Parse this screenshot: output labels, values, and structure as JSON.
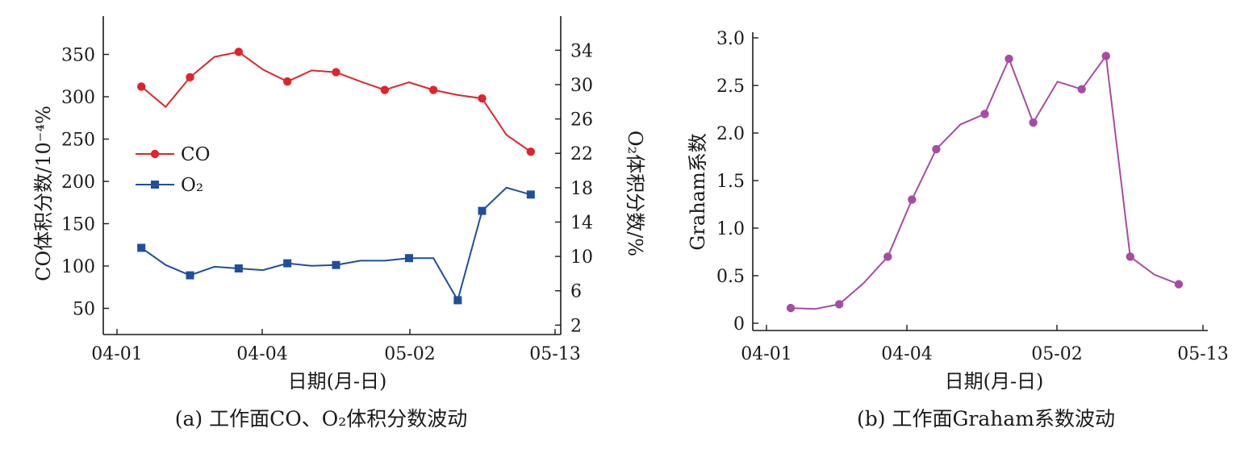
{
  "chart_data": [
    {
      "type": "line",
      "caption": "(a)  工作面CO、O₂体积分数波动",
      "xlabel": "日期(月-日)",
      "x_ticks": [
        "04-01",
        "04-04",
        "05-02",
        "05-13"
      ],
      "ylabel_left": "CO体积分数/10⁻⁴%",
      "ylabel_right": "O₂体积分数/%",
      "ylim_left": [
        20,
        360
      ],
      "ylim_right": [
        1,
        34.5
      ],
      "yticks_left": [
        50,
        100,
        150,
        200,
        250,
        300,
        350
      ],
      "yticks_right": [
        2,
        6,
        10,
        14,
        18,
        22,
        26,
        30,
        34
      ],
      "xlim": [
        0,
        18
      ],
      "legend_position": "left-middle",
      "series": [
        {
          "name": "CO",
          "axis": "left",
          "color": "#e0242b",
          "marker": "circle",
          "x": [
            1,
            2,
            3,
            4,
            5,
            6,
            7,
            8,
            9,
            10,
            11,
            12,
            13,
            14,
            15,
            16,
            17
          ],
          "y": [
            312,
            288,
            323,
            347,
            353,
            332,
            318,
            331,
            329,
            318,
            308,
            317,
            308,
            302,
            298,
            255,
            235
          ],
          "marked": [
            true,
            false,
            true,
            false,
            true,
            false,
            true,
            false,
            true,
            false,
            true,
            false,
            true,
            false,
            true,
            false,
            true
          ]
        },
        {
          "name": "O₂",
          "axis": "right",
          "color": "#1f4e9c",
          "marker": "square",
          "x": [
            1,
            2,
            3,
            4,
            5,
            6,
            7,
            8,
            9,
            10,
            11,
            12,
            13,
            14,
            15,
            16,
            17
          ],
          "y": [
            11.0,
            9.0,
            7.8,
            8.8,
            8.6,
            8.4,
            9.2,
            8.9,
            9.0,
            9.5,
            9.5,
            9.8,
            9.8,
            4.9,
            15.3,
            18.0,
            17.2
          ],
          "marked": [
            true,
            false,
            true,
            false,
            true,
            false,
            true,
            false,
            true,
            false,
            false,
            true,
            false,
            true,
            true,
            false,
            true
          ]
        }
      ]
    },
    {
      "type": "line",
      "caption": "(b)  工作面Graham系数波动",
      "xlabel": "日期(月-日)",
      "x_ticks": [
        "04-01",
        "04-04",
        "05-02",
        "05-13"
      ],
      "ylabel": "Graham系数",
      "ylim": [
        -0.1,
        3.0
      ],
      "yticks": [
        "0",
        "0.5",
        "1.0",
        "1.5",
        "2.0",
        "2.5",
        "3.0"
      ],
      "xlim": [
        0,
        18
      ],
      "series": [
        {
          "name": "",
          "color": "#a64ca6",
          "marker": "circle",
          "x": [
            1,
            2,
            3,
            4,
            5,
            6,
            7,
            8,
            9,
            10,
            11,
            12,
            13,
            14,
            15,
            16,
            17
          ],
          "y": [
            0.16,
            0.15,
            0.2,
            0.42,
            0.7,
            1.3,
            1.83,
            2.09,
            2.2,
            2.78,
            2.11,
            2.54,
            2.46,
            2.81,
            0.7,
            0.51,
            0.41
          ],
          "marked": [
            true,
            false,
            true,
            false,
            true,
            true,
            true,
            false,
            true,
            true,
            true,
            false,
            true,
            true,
            true,
            false,
            true
          ]
        }
      ]
    }
  ]
}
